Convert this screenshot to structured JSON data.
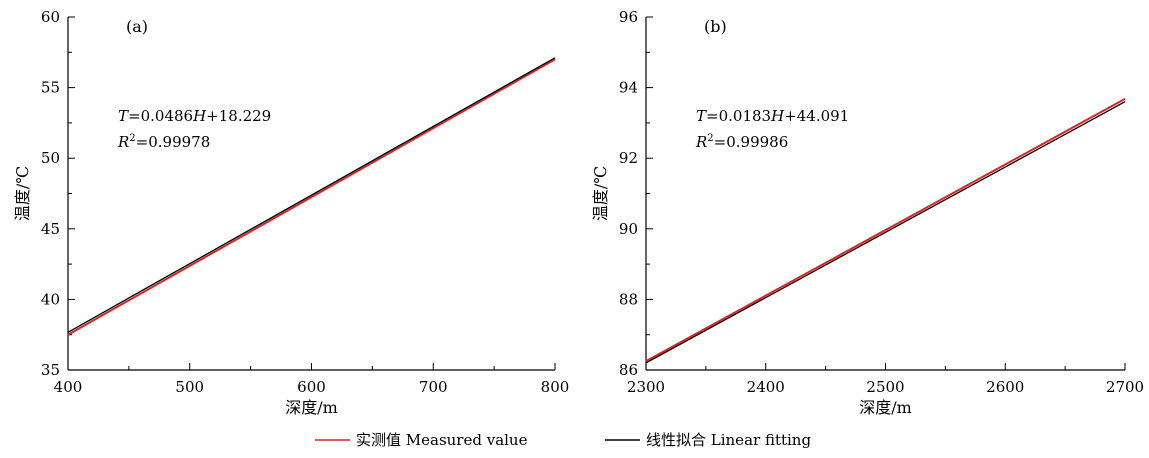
{
  "chart_data": [
    {
      "type": "line",
      "panel_label": "(a)",
      "xlabel": "深度/m",
      "ylabel": "温度/℃",
      "xlim": [
        400,
        800
      ],
      "ylim": [
        35,
        60
      ],
      "xticks": [
        400,
        500,
        600,
        700,
        800
      ],
      "yticks": [
        35,
        40,
        45,
        50,
        55,
        60
      ],
      "equation": {
        "lhs": "T",
        "coef": "=0.0486",
        "var": "H",
        "const": "+18.229"
      },
      "r_squared": {
        "sym": "R",
        "exp": "2",
        "value": "=0.99978"
      },
      "series": [
        {
          "name": "实测值 Measured value",
          "color": "#d62728",
          "x": [
            400,
            800
          ],
          "y": [
            37.5,
            57.0
          ]
        },
        {
          "name": "线性拟合 Linear fitting",
          "color": "#000000",
          "x": [
            400,
            800
          ],
          "y": [
            37.67,
            57.11
          ]
        }
      ]
    },
    {
      "type": "line",
      "panel_label": "(b)",
      "xlabel": "深度/m",
      "ylabel": "温度/℃",
      "xlim": [
        2300,
        2700
      ],
      "ylim": [
        86,
        96
      ],
      "xticks": [
        2300,
        2400,
        2500,
        2600,
        2700
      ],
      "yticks": [
        86,
        88,
        90,
        92,
        94,
        96
      ],
      "equation": {
        "lhs": "T",
        "coef": "=0.0183",
        "var": "H",
        "const": "+44.091"
      },
      "r_squared": {
        "sym": "R",
        "exp": "2",
        "value": "=0.99986"
      },
      "series": [
        {
          "name": "实测值 Measured value",
          "color": "#d62728",
          "x": [
            2300,
            2700
          ],
          "y": [
            86.25,
            93.68
          ]
        },
        {
          "name": "线性拟合 Linear fitting",
          "color": "#000000",
          "x": [
            2300,
            2700
          ],
          "y": [
            86.2,
            93.6
          ]
        }
      ]
    }
  ],
  "legend": {
    "placement": "bottom-center",
    "items": [
      {
        "label": "实测值 Measured value",
        "color": "#d62728"
      },
      {
        "label": "线性拟合 Linear fitting",
        "color": "#000000"
      }
    ]
  }
}
